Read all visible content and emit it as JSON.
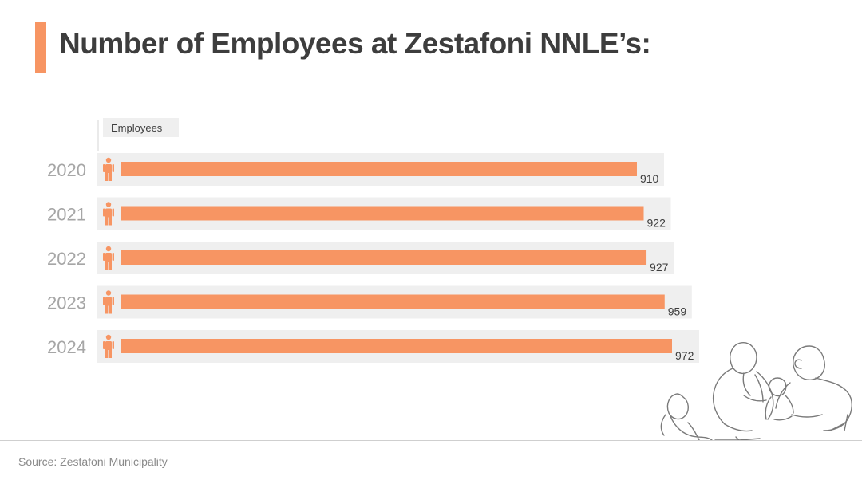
{
  "title": "Number of Employees at Zestafoni NNLE’s:",
  "source": "Source: Zestafoni Municipality",
  "colors": {
    "accent": "#f79563",
    "track": "#efefef",
    "text": "#3d3d3d",
    "year_text": "#a6a6a6"
  },
  "icons": {
    "bar_icon": "person-icon",
    "decoration": "family-line-art-illustration"
  },
  "chart_data": {
    "type": "bar",
    "orientation": "horizontal",
    "categories": [
      "2020",
      "2021",
      "2022",
      "2023",
      "2024"
    ],
    "series": [
      {
        "name": "Employees",
        "values": [
          910,
          922,
          927,
          959,
          972
        ]
      }
    ],
    "data_labels": [
      "910",
      "922",
      "927",
      "959",
      "972"
    ],
    "legend": "top-left",
    "grid": false
  }
}
